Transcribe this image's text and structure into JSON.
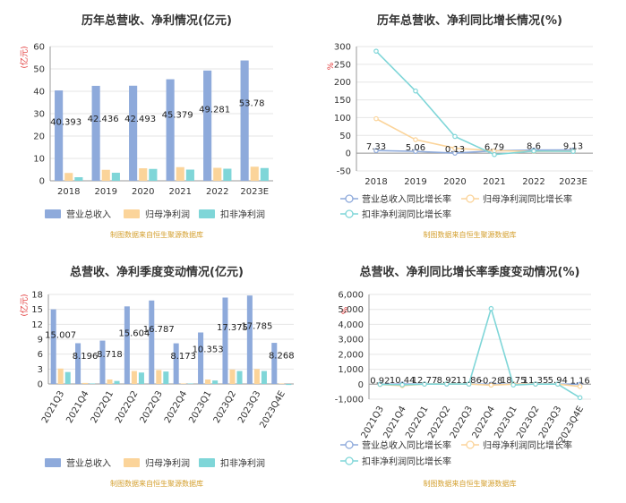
{
  "source_text": "制图数据来自恒生聚源数据库",
  "chart_data": [
    {
      "type": "bar",
      "title": "历年总营收、净利情况(亿元)",
      "unit_label": "(亿元)",
      "categories": [
        "2018",
        "2019",
        "2020",
        "2021",
        "2022",
        "2023E"
      ],
      "series": [
        {
          "name": "营业总收入",
          "color": "#8eaadb",
          "values": [
            40.393,
            42.436,
            42.493,
            45.379,
            49.281,
            53.78
          ],
          "labels": [
            "40.393",
            "42.436",
            "42.493",
            "45.379",
            "49.281",
            "53.78"
          ]
        },
        {
          "name": "归母净利润",
          "color": "#fbd49a",
          "values": [
            3.5,
            4.9,
            5.6,
            6.1,
            5.8,
            6.3
          ]
        },
        {
          "name": "扣非净利润",
          "color": "#7fd6d8",
          "values": [
            1.6,
            3.6,
            5.3,
            5.0,
            5.4,
            5.7
          ]
        }
      ],
      "ylim": [
        0,
        60
      ],
      "yticks": [
        0,
        10,
        20,
        30,
        40,
        50,
        60
      ]
    },
    {
      "type": "line",
      "title": "历年总营收、净利同比增长情况(%)",
      "unit_label": "%",
      "categories": [
        "2018",
        "2019",
        "2020",
        "2021",
        "2022",
        "2023E"
      ],
      "series": [
        {
          "name": "营业总收入同比增长率",
          "color": "#8eaadb",
          "values": [
            7.33,
            5.06,
            0.13,
            6.79,
            8.6,
            9.13
          ],
          "labels": [
            "7.33",
            "5.06",
            "0.13",
            "6.79",
            "8.6",
            "9.13"
          ]
        },
        {
          "name": "归母净利润同比增长率",
          "color": "#fbd49a",
          "values": [
            97,
            38,
            14,
            7,
            5,
            6
          ]
        },
        {
          "name": "扣非净利润同比增长率",
          "color": "#7fd6d8",
          "values": [
            287,
            175,
            47,
            -4,
            6,
            5
          ]
        }
      ],
      "ylim": [
        -50,
        300
      ],
      "yticks": [
        -50,
        0,
        50,
        100,
        150,
        200,
        250,
        300
      ]
    },
    {
      "type": "bar",
      "title": "总营收、净利季度变动情况(亿元)",
      "unit_label": "(亿元)",
      "categories": [
        "2021Q3",
        "2021Q4",
        "2022Q1",
        "2022Q2",
        "2022Q3",
        "2022Q4",
        "2023Q1",
        "2023Q2",
        "2023Q3",
        "2023Q4E"
      ],
      "series": [
        {
          "name": "营业总收入",
          "color": "#8eaadb",
          "values": [
            15.007,
            8.196,
            8.718,
            15.604,
            16.787,
            8.173,
            10.353,
            17.375,
            17.785,
            8.268
          ],
          "labels": [
            "15.007",
            "8.196",
            "8.718",
            "15.604",
            "16.787",
            "8.173",
            "10.353",
            "17.375",
            "17.785",
            "8.268"
          ]
        },
        {
          "name": "归母净利润",
          "color": "#fbd49a",
          "values": [
            3.1,
            0.2,
            0.9,
            2.6,
            2.8,
            0.1,
            0.9,
            2.9,
            3.0,
            0.1
          ]
        },
        {
          "name": "扣非净利润",
          "color": "#7fd6d8",
          "values": [
            2.4,
            0.1,
            0.6,
            2.3,
            2.5,
            0.1,
            0.7,
            2.6,
            2.6,
            -0.2
          ]
        }
      ],
      "ylim": [
        0,
        18
      ],
      "yticks": [
        0,
        3,
        6,
        9,
        12,
        15,
        18
      ]
    },
    {
      "type": "line",
      "title": "总营收、净利同比增长率季度变动情况(%)",
      "unit_label": "%",
      "categories": [
        "2021Q3",
        "2021Q4",
        "2022Q1",
        "2022Q2",
        "2022Q3",
        "2022Q4",
        "2023Q1",
        "2023Q2",
        "2023Q3",
        "2023Q4E"
      ],
      "series": [
        {
          "name": "营业总收入同比增长率",
          "color": "#8eaadb",
          "values": [
            0.92,
            10.44,
            12.77,
            8.92,
            11.86,
            -0.28,
            18.75,
            11.35,
            5.94,
            1.16
          ],
          "labels": [
            "0.92",
            "10.44",
            "12.77",
            "8.92",
            "11.86",
            "-0.28",
            "18.75",
            "11.35",
            "5.94",
            "1.16"
          ]
        },
        {
          "name": "归母净利润同比增长率",
          "color": "#fbd49a",
          "values": [
            -20,
            -100,
            10,
            20,
            10,
            -60,
            5,
            12,
            8,
            -150
          ]
        },
        {
          "name": "扣非净利润同比增长率",
          "color": "#7fd6d8",
          "values": [
            -10,
            -40,
            5,
            15,
            10,
            5060,
            -50,
            10,
            5,
            -900
          ]
        }
      ],
      "ylim": [
        -1000,
        6000
      ],
      "yticks": [
        -1000,
        0,
        1000,
        2000,
        3000,
        4000,
        5000,
        6000
      ],
      "ytick_labels": [
        "-1,000",
        "0",
        "1,000",
        "2,000",
        "3,000",
        "4,000",
        "5,000",
        "6,000"
      ]
    }
  ]
}
